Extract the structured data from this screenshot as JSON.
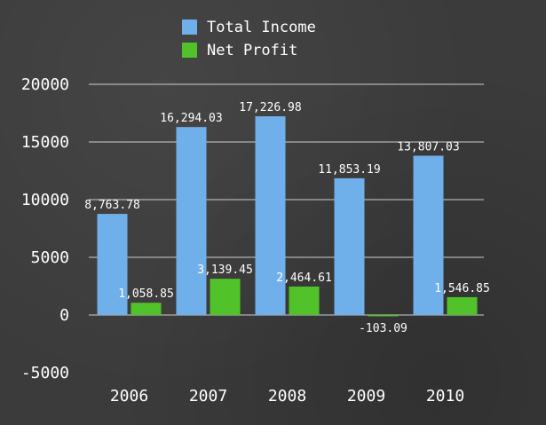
{
  "chart_data": {
    "type": "bar",
    "categories": [
      "2006",
      "2007",
      "2008",
      "2009",
      "2010"
    ],
    "series": [
      {
        "name": "Total Income",
        "color": "#70b0ea",
        "values": [
          8763.78,
          16294.03,
          17226.98,
          11853.19,
          13807.03
        ],
        "labels": [
          "8,763.78",
          "16,294.03",
          "17,226.98",
          "11,853.19",
          "13,807.03"
        ]
      },
      {
        "name": "Net Profit",
        "color": "#52c22a",
        "values": [
          1058.85,
          3139.45,
          2464.61,
          -103.09,
          1546.85
        ],
        "labels": [
          "1,058.85",
          "3,139.45",
          "2,464.61",
          "-103.09",
          "1,546.85"
        ]
      }
    ],
    "y_ticks": [
      "20000",
      "15000",
      "10000",
      "5000",
      "0",
      "-5000"
    ],
    "ylim": [
      -5000,
      20000
    ],
    "grid": true,
    "legend_position": "top-center"
  }
}
